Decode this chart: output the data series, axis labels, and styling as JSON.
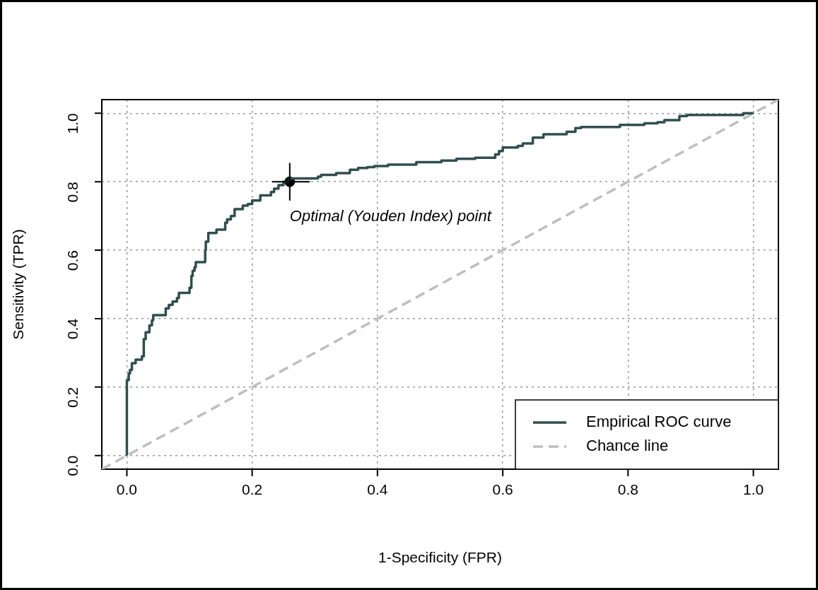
{
  "chart_data": {
    "type": "step",
    "xlabel": "1-Specificity (FPR)",
    "ylabel": "Sensitivity (TPR)",
    "xlim": [
      -0.04,
      1.04
    ],
    "ylim": [
      -0.04,
      1.04
    ],
    "xticks": [
      {
        "value": 0,
        "label": "0.0"
      },
      {
        "value": 0.2,
        "label": "0.2"
      },
      {
        "value": 0.4,
        "label": "0.4"
      },
      {
        "value": 0.6,
        "label": "0.6"
      },
      {
        "value": 0.8,
        "label": "0.8"
      },
      {
        "value": 1,
        "label": "1.0"
      }
    ],
    "yticks": [
      {
        "value": 0,
        "label": "0.0"
      },
      {
        "value": 0.2,
        "label": "0.2"
      },
      {
        "value": 0.4,
        "label": "0.4"
      },
      {
        "value": 0.6,
        "label": "0.6"
      },
      {
        "value": 0.8,
        "label": "0.8"
      },
      {
        "value": 1,
        "label": "1.0"
      }
    ],
    "grid": true,
    "legend": "bottom right",
    "annotations": [
      {
        "text": "Optimal (Youden Index) point",
        "x": 0.26,
        "y": 0.8
      }
    ],
    "series": [
      {
        "name": "Empirical ROC curve",
        "color": "#2f4f4f",
        "line_style": "solid",
        "marker": "none",
        "x": [
          0,
          0,
          0.003,
          0.005,
          0.008,
          0.014,
          0.024,
          0.027,
          0.03,
          0.036,
          0.04,
          0.042,
          0.062,
          0.067,
          0.073,
          0.08,
          0.083,
          0.1,
          0.103,
          0.105,
          0.108,
          0.11,
          0.125,
          0.126,
          0.13,
          0.143,
          0.157,
          0.16,
          0.166,
          0.172,
          0.185,
          0.193,
          0.2,
          0.213,
          0.23,
          0.235,
          0.242,
          0.25,
          0.26,
          0.305,
          0.31,
          0.334,
          0.356,
          0.369,
          0.384,
          0.395,
          0.417,
          0.462,
          0.502,
          0.526,
          0.556,
          0.588,
          0.594,
          0.6,
          0.624,
          0.632,
          0.648,
          0.665,
          0.702,
          0.716,
          0.725,
          0.787,
          0.826,
          0.847,
          0.858,
          0.882,
          0.894,
          0.984,
          1.0
        ],
        "values": [
          0,
          0.19,
          0.22,
          0.24,
          0.25,
          0.27,
          0.28,
          0.29,
          0.34,
          0.36,
          0.38,
          0.395,
          0.41,
          0.43,
          0.44,
          0.45,
          0.46,
          0.475,
          0.49,
          0.525,
          0.54,
          0.55,
          0.565,
          0.6,
          0.625,
          0.65,
          0.66,
          0.68,
          0.69,
          0.7,
          0.72,
          0.73,
          0.735,
          0.745,
          0.76,
          0.77,
          0.78,
          0.79,
          0.8,
          0.81,
          0.815,
          0.82,
          0.825,
          0.835,
          0.84,
          0.843,
          0.846,
          0.85,
          0.857,
          0.862,
          0.867,
          0.87,
          0.88,
          0.89,
          0.9,
          0.905,
          0.912,
          0.929,
          0.939,
          0.946,
          0.957,
          0.96,
          0.966,
          0.971,
          0.974,
          0.98,
          0.992,
          0.995,
          1.0
        ]
      },
      {
        "name": "Chance line",
        "type": "line",
        "color": "#bebebe",
        "line_style": "dashed",
        "marker": "none",
        "x": [
          -0.04,
          1.04
        ],
        "values": [
          -0.04,
          1.04
        ]
      },
      {
        "type": "scatter",
        "color": "#000000",
        "marker": "circle",
        "x": [
          0.26
        ],
        "values": [
          0.8
        ],
        "errors": [
          [
            0.745,
            0.855
          ]
        ],
        "xerrors": [
          [
            0.232,
            0.292
          ]
        ]
      }
    ]
  }
}
